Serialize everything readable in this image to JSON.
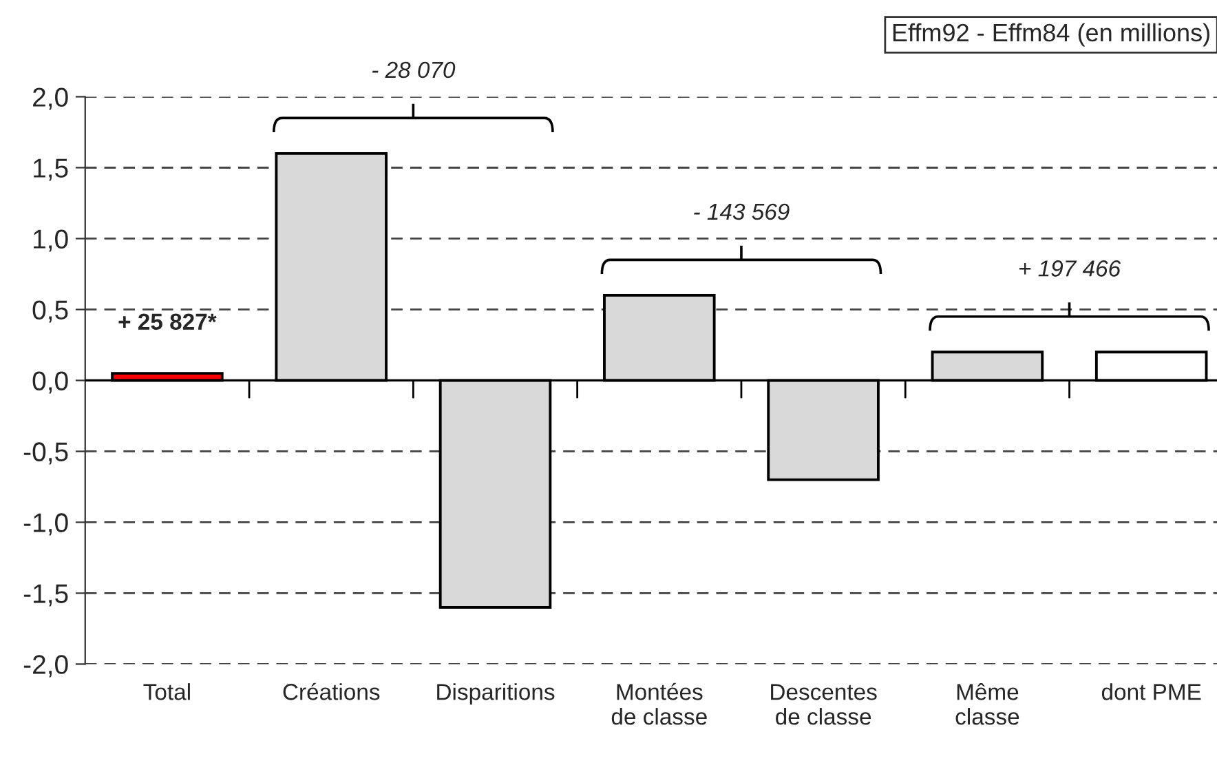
{
  "chart_data": {
    "type": "bar",
    "title": "Effm92 - Effm84 (en millions)",
    "categories": [
      "Total",
      "Créations",
      "Disparitions",
      "Montées\nde classe",
      "Descentes\nde classe",
      "Même\nclasse",
      "dont PME"
    ],
    "values": [
      0.05,
      1.6,
      -1.6,
      0.6,
      -0.7,
      0.2,
      0.2
    ],
    "colors": [
      "#ff0000",
      "#d9d9d9",
      "#d9d9d9",
      "#d9d9d9",
      "#d9d9d9",
      "#d9d9d9",
      "#ffffff"
    ],
    "annotations": [
      "+ 25 827*",
      "- 28 070",
      "- 143 569",
      "+ 197 466"
    ],
    "ylim": [
      -2.0,
      2.0
    ],
    "yticks": [
      {
        "value": -2.0,
        "label": "-2,0"
      },
      {
        "value": -1.5,
        "label": "-1,5"
      },
      {
        "value": -1.0,
        "label": "-1,0"
      },
      {
        "value": -0.5,
        "label": "-0,5"
      },
      {
        "value": 0.0,
        "label": "0,0"
      },
      {
        "value": 0.5,
        "label": "0,5"
      },
      {
        "value": 1.0,
        "label": "1,0"
      },
      {
        "value": 1.5,
        "label": "1,5"
      },
      {
        "value": 2.0,
        "label": "2,0"
      }
    ],
    "grid": "y"
  }
}
